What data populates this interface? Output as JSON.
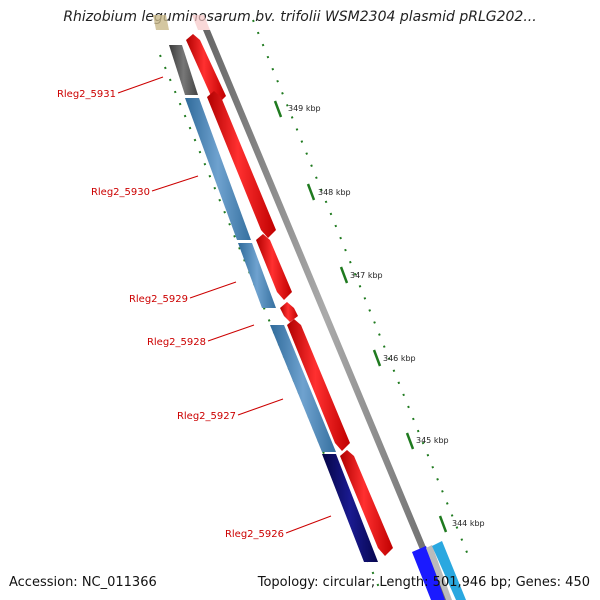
{
  "title": "Rhizobium leguminosarum bv. trifolii WSM2304 plasmid pRLG202...",
  "accession": "Accession: NC_011366",
  "topology": "Topology: circular; Length: 501,946 bp; Genes: 450",
  "kbp_ticks": [
    {
      "kbp": 349,
      "label": "349 kbp"
    },
    {
      "kbp": 348,
      "label": "348 kbp"
    },
    {
      "kbp": 347,
      "label": "347 kbp"
    },
    {
      "kbp": 346,
      "label": "346 kbp"
    },
    {
      "kbp": 345,
      "label": "345 kbp"
    },
    {
      "kbp": 344,
      "label": "344 kbp"
    }
  ],
  "genes": [
    {
      "label": "Rleg2_5931"
    },
    {
      "label": "Rleg2_5930"
    },
    {
      "label": "Rleg2_5929"
    },
    {
      "label": "Rleg2_5928"
    },
    {
      "label": "Rleg2_5927"
    },
    {
      "label": "Rleg2_5926"
    }
  ],
  "colors": {
    "cds": "#ee1111",
    "blue": "#4682b4",
    "dark_gray": "#555555",
    "navy": "#0b0b6e",
    "backbone": "#8a8a8a",
    "tick": "#1f7a1f",
    "label": "#cc0000"
  }
}
